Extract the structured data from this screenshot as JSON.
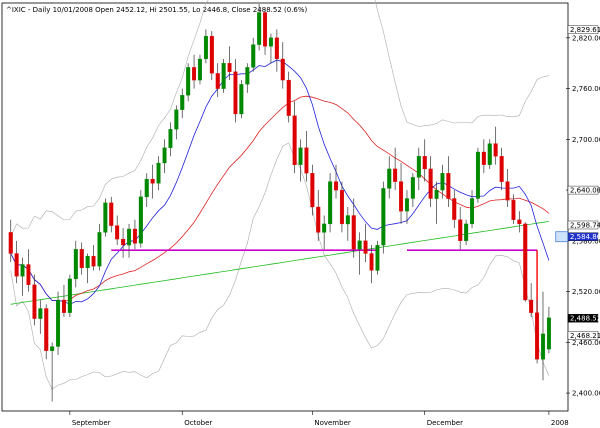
{
  "chart_data": {
    "type": "candlestick",
    "title": "^IXIC - Daily 10/01/2008 Open 2452.12, Hi 2501.55, Lo 2446.8, Close 2488.52 (0.6%)",
    "y_ticks": [
      2400,
      2460,
      2520,
      2580,
      2640,
      2700,
      2760,
      2820
    ],
    "y_tick_labels": [
      "2,400.00",
      "2,460.00",
      "2,520.00",
      "2,580.00",
      "2,640.00",
      "2,700.00",
      "2,760.00",
      "2,820.00"
    ],
    "ylim": [
      2380,
      2860
    ],
    "x_labels": [
      {
        "label": "September",
        "index": 10
      },
      {
        "label": "October",
        "index": 29
      },
      {
        "label": "November",
        "index": 51
      },
      {
        "label": "December",
        "index": 70
      },
      {
        "label": "2008",
        "index": 91
      }
    ],
    "price_labels": [
      {
        "text": "2,829.61",
        "value": 2829.61,
        "bg": "#ffffff",
        "fg": "#000000"
      },
      {
        "text": "2,640.00",
        "value": 2640,
        "bg": "#ffffff",
        "fg": "#000000"
      },
      {
        "text": "2,598.74",
        "value": 2598.74,
        "bg": "#ffffff",
        "fg": "#000000"
      },
      {
        "text": "2,584.86",
        "value": 2584.86,
        "bg": "#2233cc",
        "fg": "#ffffff"
      },
      {
        "text": "2,488.52",
        "value": 2488.52,
        "bg": "#000000",
        "fg": "#ffffff"
      },
      {
        "text": "2,468.21",
        "value": 2468.21,
        "bg": "#ffffff",
        "fg": "#000000"
      }
    ],
    "support_line": {
      "value": 2569,
      "color": "#cc00cc",
      "segments": [
        [
          17,
          62
        ],
        [
          67,
          89
        ]
      ],
      "drop_to": 2488,
      "drop_index": 89
    },
    "marker_box": {
      "index": 93,
      "value": 2584.86
    },
    "series_colors": {
      "up": "#008800",
      "down": "#dd0000",
      "ma20": "#2222dd",
      "ma50": "#dd2222",
      "ma200": "#22bb22",
      "bands": "#aaaaaa"
    },
    "candles": [
      [
        2590,
        2605,
        2555,
        2565
      ],
      [
        2565,
        2580,
        2530,
        2538
      ],
      [
        2538,
        2560,
        2515,
        2552
      ],
      [
        2552,
        2570,
        2520,
        2528
      ],
      [
        2528,
        2540,
        2480,
        2488
      ],
      [
        2488,
        2510,
        2470,
        2500
      ],
      [
        2500,
        2505,
        2440,
        2450
      ],
      [
        2450,
        2460,
        2390,
        2455
      ],
      [
        2455,
        2520,
        2445,
        2510
      ],
      [
        2510,
        2528,
        2490,
        2495
      ],
      [
        2495,
        2540,
        2490,
        2535
      ],
      [
        2535,
        2580,
        2525,
        2570
      ],
      [
        2570,
        2578,
        2540,
        2548
      ],
      [
        2548,
        2565,
        2530,
        2562
      ],
      [
        2562,
        2575,
        2545,
        2550
      ],
      [
        2550,
        2600,
        2545,
        2590
      ],
      [
        2590,
        2630,
        2585,
        2625
      ],
      [
        2625,
        2632,
        2590,
        2598
      ],
      [
        2598,
        2610,
        2575,
        2582
      ],
      [
        2582,
        2595,
        2560,
        2575
      ],
      [
        2575,
        2600,
        2560,
        2594
      ],
      [
        2594,
        2605,
        2570,
        2577
      ],
      [
        2577,
        2640,
        2572,
        2632
      ],
      [
        2632,
        2660,
        2620,
        2653
      ],
      [
        2653,
        2670,
        2630,
        2648
      ],
      [
        2648,
        2680,
        2640,
        2672
      ],
      [
        2672,
        2700,
        2660,
        2690
      ],
      [
        2690,
        2720,
        2680,
        2712
      ],
      [
        2712,
        2740,
        2700,
        2735
      ],
      [
        2735,
        2760,
        2725,
        2752
      ],
      [
        2752,
        2790,
        2745,
        2785
      ],
      [
        2785,
        2800,
        2760,
        2770
      ],
      [
        2770,
        2800,
        2765,
        2795
      ],
      [
        2795,
        2830,
        2790,
        2822
      ],
      [
        2822,
        2828,
        2770,
        2778
      ],
      [
        2778,
        2790,
        2750,
        2760
      ],
      [
        2760,
        2795,
        2755,
        2790
      ],
      [
        2790,
        2810,
        2770,
        2780
      ],
      [
        2780,
        2795,
        2720,
        2730
      ],
      [
        2730,
        2770,
        2725,
        2765
      ],
      [
        2765,
        2790,
        2755,
        2785
      ],
      [
        2785,
        2820,
        2780,
        2812
      ],
      [
        2812,
        2860,
        2805,
        2850
      ],
      [
        2850,
        2855,
        2800,
        2810
      ],
      [
        2810,
        2825,
        2790,
        2820
      ],
      [
        2820,
        2830,
        2780,
        2795
      ],
      [
        2795,
        2815,
        2760,
        2770
      ],
      [
        2770,
        2780,
        2720,
        2728
      ],
      [
        2728,
        2745,
        2660,
        2670
      ],
      [
        2670,
        2700,
        2650,
        2690
      ],
      [
        2690,
        2710,
        2650,
        2660
      ],
      [
        2660,
        2670,
        2610,
        2620
      ],
      [
        2620,
        2640,
        2580,
        2590
      ],
      [
        2590,
        2610,
        2570,
        2600
      ],
      [
        2600,
        2660,
        2590,
        2650
      ],
      [
        2650,
        2670,
        2630,
        2640
      ],
      [
        2640,
        2650,
        2590,
        2600
      ],
      [
        2600,
        2620,
        2580,
        2610
      ],
      [
        2610,
        2630,
        2560,
        2570
      ],
      [
        2570,
        2590,
        2540,
        2580
      ],
      [
        2580,
        2600,
        2555,
        2565
      ],
      [
        2565,
        2575,
        2530,
        2545
      ],
      [
        2545,
        2580,
        2540,
        2575
      ],
      [
        2575,
        2650,
        2565,
        2642
      ],
      [
        2642,
        2680,
        2630,
        2665
      ],
      [
        2665,
        2690,
        2640,
        2650
      ],
      [
        2650,
        2672,
        2600,
        2615
      ],
      [
        2615,
        2640,
        2600,
        2630
      ],
      [
        2630,
        2660,
        2620,
        2655
      ],
      [
        2655,
        2690,
        2640,
        2680
      ],
      [
        2680,
        2700,
        2650,
        2665
      ],
      [
        2665,
        2680,
        2620,
        2630
      ],
      [
        2630,
        2650,
        2600,
        2640
      ],
      [
        2640,
        2670,
        2630,
        2660
      ],
      [
        2660,
        2680,
        2620,
        2630
      ],
      [
        2630,
        2640,
        2595,
        2605
      ],
      [
        2605,
        2620,
        2570,
        2580
      ],
      [
        2580,
        2605,
        2575,
        2600
      ],
      [
        2600,
        2640,
        2595,
        2630
      ],
      [
        2630,
        2690,
        2625,
        2685
      ],
      [
        2685,
        2700,
        2660,
        2670
      ],
      [
        2670,
        2700,
        2665,
        2695
      ],
      [
        2695,
        2715,
        2670,
        2680
      ],
      [
        2680,
        2690,
        2640,
        2650
      ],
      [
        2650,
        2665,
        2620,
        2628
      ],
      [
        2628,
        2635,
        2600,
        2605
      ],
      [
        2605,
        2615,
        2590,
        2600
      ],
      [
        2600,
        2602,
        2508,
        2510
      ],
      [
        2510,
        2530,
        2490,
        2495
      ],
      [
        2495,
        2510,
        2435,
        2440
      ],
      [
        2440,
        2520,
        2415,
        2470
      ],
      [
        2452,
        2502,
        2447,
        2489
      ]
    ]
  }
}
